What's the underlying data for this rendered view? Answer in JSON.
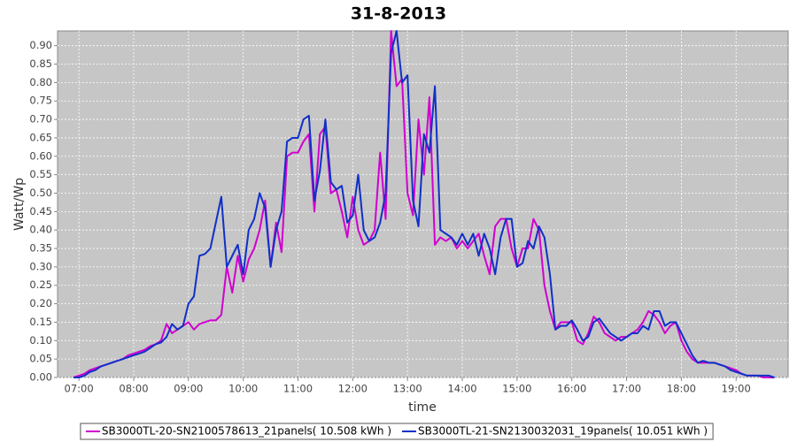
{
  "chart_data": {
    "type": "line",
    "title": "31-8-2013",
    "x_label": "time",
    "y_label": "Watt/Wp",
    "xlim": [
      6.61,
      19.95
    ],
    "ylim": [
      0,
      0.94
    ],
    "grid": true,
    "legend": "bottom",
    "xticks": [
      {
        "value": 7,
        "label": "07:00"
      },
      {
        "value": 8,
        "label": "08:00"
      },
      {
        "value": 9,
        "label": "09:00"
      },
      {
        "value": 10,
        "label": "10:00"
      },
      {
        "value": 11,
        "label": "11:00"
      },
      {
        "value": 12,
        "label": "12:00"
      },
      {
        "value": 13,
        "label": "13:00"
      },
      {
        "value": 14,
        "label": "14:00"
      },
      {
        "value": 15,
        "label": "15:00"
      },
      {
        "value": 16,
        "label": "16:00"
      },
      {
        "value": 17,
        "label": "17:00"
      },
      {
        "value": 18,
        "label": "18:00"
      },
      {
        "value": 19,
        "label": "19:00"
      }
    ],
    "yticks": [
      {
        "value": 0,
        "label": "0.00"
      },
      {
        "value": 0.05,
        "label": "0.05"
      },
      {
        "value": 0.1,
        "label": "0.10"
      },
      {
        "value": 0.15,
        "label": "0.15"
      },
      {
        "value": 0.2,
        "label": "0.20"
      },
      {
        "value": 0.25,
        "label": "0.25"
      },
      {
        "value": 0.3,
        "label": "0.30"
      },
      {
        "value": 0.35,
        "label": "0.35"
      },
      {
        "value": 0.4,
        "label": "0.40"
      },
      {
        "value": 0.45,
        "label": "0.45"
      },
      {
        "value": 0.5,
        "label": "0.50"
      },
      {
        "value": 0.55,
        "label": "0.55"
      },
      {
        "value": 0.6,
        "label": "0.60"
      },
      {
        "value": 0.65,
        "label": "0.65"
      },
      {
        "value": 0.7,
        "label": "0.70"
      },
      {
        "value": 0.75,
        "label": "0.75"
      },
      {
        "value": 0.8,
        "label": "0.80"
      },
      {
        "value": 0.85,
        "label": "0.85"
      },
      {
        "value": 0.9,
        "label": "0.90"
      }
    ],
    "x": [
      6.9,
      7,
      7.1,
      7.2,
      7.3,
      7.4,
      7.5,
      7.6,
      7.7,
      7.8,
      7.9,
      8,
      8.1,
      8.2,
      8.3,
      8.4,
      8.5,
      8.6,
      8.7,
      8.8,
      8.9,
      9,
      9.1,
      9.2,
      9.3,
      9.4,
      9.5,
      9.6,
      9.7,
      9.8,
      9.9,
      10,
      10.1,
      10.2,
      10.3,
      10.4,
      10.5,
      10.6,
      10.7,
      10.8,
      10.9,
      11,
      11.1,
      11.2,
      11.3,
      11.4,
      11.5,
      11.6,
      11.7,
      11.8,
      11.9,
      12,
      12.1,
      12.2,
      12.3,
      12.4,
      12.5,
      12.6,
      12.7,
      12.8,
      12.9,
      13,
      13.1,
      13.2,
      13.3,
      13.4,
      13.5,
      13.6,
      13.7,
      13.8,
      13.9,
      14,
      14.1,
      14.2,
      14.3,
      14.4,
      14.5,
      14.6,
      14.7,
      14.8,
      14.9,
      15,
      15.1,
      15.2,
      15.3,
      15.4,
      15.5,
      15.6,
      15.7,
      15.8,
      15.9,
      16,
      16.1,
      16.2,
      16.3,
      16.4,
      16.5,
      16.6,
      16.7,
      16.8,
      16.9,
      17,
      17.1,
      17.2,
      17.3,
      17.4,
      17.5,
      17.6,
      17.7,
      17.8,
      17.9,
      18,
      18.1,
      18.2,
      18.3,
      18.4,
      18.5,
      18.6,
      18.7,
      18.8,
      18.9,
      19,
      19.1,
      19.2,
      19.3,
      19.4,
      19.5,
      19.6,
      19.7
    ],
    "series": [
      {
        "name": "SB3000TL-20-SN2100578613_21panels( 10.508 kWh )",
        "color": "#d000d0",
        "values": [
          0,
          0.005,
          0.01,
          0.02,
          0.025,
          0.03,
          0.035,
          0.04,
          0.045,
          0.05,
          0.06,
          0.065,
          0.07,
          0.075,
          0.085,
          0.09,
          0.1,
          0.145,
          0.12,
          0.13,
          0.14,
          0.15,
          0.13,
          0.145,
          0.15,
          0.155,
          0.155,
          0.17,
          0.3,
          0.23,
          0.33,
          0.26,
          0.32,
          0.35,
          0.4,
          0.48,
          0.3,
          0.42,
          0.34,
          0.6,
          0.61,
          0.61,
          0.64,
          0.66,
          0.45,
          0.66,
          0.68,
          0.5,
          0.51,
          0.45,
          0.38,
          0.49,
          0.4,
          0.36,
          0.37,
          0.4,
          0.61,
          0.43,
          0.94,
          0.79,
          0.81,
          0.5,
          0.44,
          0.7,
          0.55,
          0.76,
          0.36,
          0.38,
          0.37,
          0.38,
          0.35,
          0.37,
          0.35,
          0.37,
          0.39,
          0.33,
          0.28,
          0.41,
          0.43,
          0.43,
          0.35,
          0.3,
          0.35,
          0.35,
          0.43,
          0.4,
          0.25,
          0.18,
          0.13,
          0.15,
          0.15,
          0.15,
          0.1,
          0.09,
          0.12,
          0.165,
          0.15,
          0.12,
          0.11,
          0.1,
          0.11,
          0.11,
          0.12,
          0.13,
          0.15,
          0.18,
          0.17,
          0.15,
          0.12,
          0.14,
          0.15,
          0.1,
          0.07,
          0.05,
          0.04,
          0.04,
          0.04,
          0.04,
          0.035,
          0.03,
          0.025,
          0.02,
          0.01,
          0.005,
          0.005,
          0.005,
          0,
          0,
          0
        ]
      },
      {
        "name": "SB3000TL-21-SN2130032031_19panels( 10.051 kWh )",
        "color": "#1030c8",
        "values": [
          0,
          0,
          0.005,
          0.015,
          0.02,
          0.03,
          0.035,
          0.04,
          0.045,
          0.05,
          0.055,
          0.06,
          0.065,
          0.07,
          0.08,
          0.09,
          0.095,
          0.11,
          0.145,
          0.13,
          0.14,
          0.2,
          0.22,
          0.33,
          0.335,
          0.35,
          0.42,
          0.49,
          0.3,
          0.33,
          0.36,
          0.28,
          0.4,
          0.43,
          0.5,
          0.46,
          0.3,
          0.4,
          0.45,
          0.64,
          0.65,
          0.65,
          0.7,
          0.71,
          0.48,
          0.56,
          0.7,
          0.53,
          0.51,
          0.52,
          0.42,
          0.44,
          0.55,
          0.4,
          0.37,
          0.38,
          0.42,
          0.5,
          0.88,
          0.94,
          0.8,
          0.82,
          0.48,
          0.41,
          0.66,
          0.61,
          0.79,
          0.4,
          0.39,
          0.38,
          0.36,
          0.39,
          0.36,
          0.39,
          0.33,
          0.39,
          0.35,
          0.28,
          0.38,
          0.43,
          0.43,
          0.3,
          0.31,
          0.37,
          0.35,
          0.41,
          0.38,
          0.28,
          0.13,
          0.14,
          0.14,
          0.155,
          0.13,
          0.1,
          0.11,
          0.15,
          0.16,
          0.14,
          0.12,
          0.11,
          0.1,
          0.11,
          0.12,
          0.12,
          0.14,
          0.13,
          0.18,
          0.18,
          0.14,
          0.15,
          0.15,
          0.12,
          0.09,
          0.06,
          0.04,
          0.045,
          0.04,
          0.04,
          0.035,
          0.03,
          0.02,
          0.015,
          0.01,
          0.005,
          0.005,
          0.005,
          0.005,
          0.005,
          0
        ]
      }
    ]
  }
}
